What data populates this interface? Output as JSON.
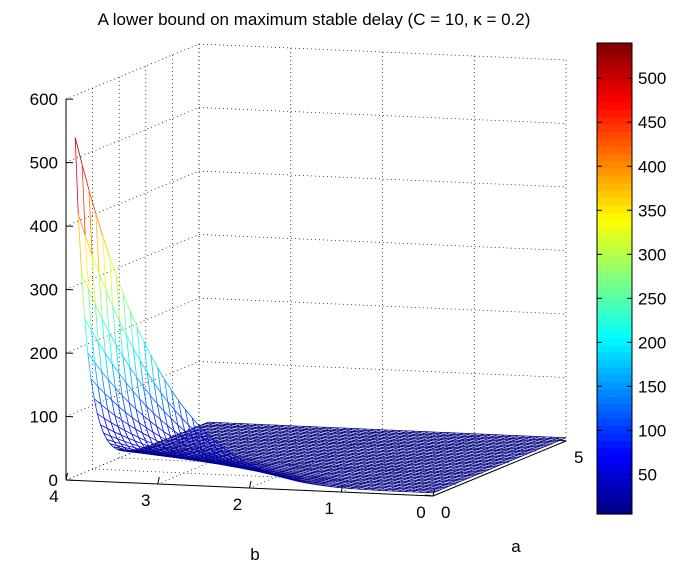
{
  "chart_data": {
    "type": "surface",
    "title": "A lower bound on maximum stable delay (C = 10, κ = 0.2)",
    "xlabel": "b",
    "ylabel": "a",
    "zlabel": "",
    "b_range": [
      0,
      4
    ],
    "a_range": [
      0,
      5
    ],
    "z_range": [
      0,
      600
    ],
    "b_ticks": [
      "0",
      "1",
      "2",
      "3",
      "4"
    ],
    "a_ticks": [
      "0",
      "5"
    ],
    "z_ticks": [
      "0",
      "100",
      "200",
      "300",
      "400",
      "500",
      "600"
    ],
    "colorbar": {
      "ticks": [
        "50",
        "100",
        "150",
        "200",
        "250",
        "300",
        "350",
        "400",
        "450",
        "500"
      ],
      "range": [
        5,
        540
      ],
      "colormap": "jet"
    },
    "surface_peak": {
      "b": 3.9,
      "a": 0,
      "z": 540
    },
    "grid": true,
    "mesh": true
  }
}
